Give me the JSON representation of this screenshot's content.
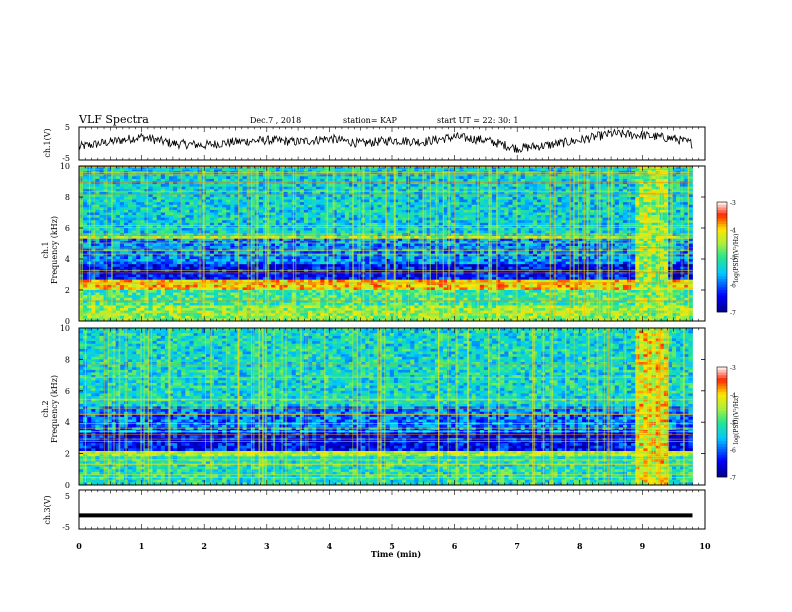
{
  "header": {
    "title": "VLF Spectra",
    "date": "Dec.7 , 2018",
    "station": "station= KAP",
    "start_ut": "start UT =  22: 30: 1"
  },
  "chart_data": [
    {
      "id": "ch1_waveform",
      "type": "line",
      "ylabel": "ch.1(V)",
      "yticks": [
        "5",
        "-5"
      ],
      "ylim": [
        -5,
        5
      ],
      "xlim": [
        0,
        10
      ],
      "x_end": 9.8,
      "series": [
        {
          "x": [
            0.0,
            0.5,
            1.0,
            1.5,
            2.0,
            2.5,
            3.0,
            3.5,
            4.0,
            4.5,
            5.0,
            5.5,
            6.0,
            6.5,
            7.0,
            7.5,
            8.0,
            8.5,
            9.0,
            9.5,
            9.8
          ],
          "values": [
            -1.0,
            0.5,
            2.0,
            0.0,
            -0.5,
            0.5,
            1.0,
            0.5,
            1.5,
            0.0,
            1.0,
            0.5,
            2.0,
            1.0,
            -1.5,
            -0.5,
            1.0,
            3.0,
            2.5,
            1.5,
            0.0
          ]
        }
      ],
      "color": "#000000"
    },
    {
      "id": "ch1_spectrogram",
      "type": "heatmap",
      "ylabel": "Frequency (kHz)",
      "channel_label": "ch.1",
      "yticks": [
        "0",
        "2",
        "4",
        "6",
        "8",
        "10"
      ],
      "ylim": [
        0,
        10
      ],
      "xlim": [
        0,
        10
      ],
      "colorbar": {
        "label": "log(PSD)(V²/Hz)",
        "ticks": [
          "-3",
          "-4",
          "-5",
          "-6",
          "-7"
        ],
        "range": [
          -7,
          -3
        ]
      },
      "bands": [
        {
          "f0": 0.0,
          "f1": 1.0,
          "level": -4.6
        },
        {
          "f0": 1.0,
          "f1": 2.0,
          "level": -5.0
        },
        {
          "f0": 2.0,
          "f1": 2.6,
          "level": -4.0
        },
        {
          "f0": 2.6,
          "f1": 3.6,
          "level": -6.4
        },
        {
          "f0": 3.6,
          "f1": 5.3,
          "level": -5.8
        },
        {
          "f0": 5.3,
          "f1": 5.5,
          "level": -4.5
        },
        {
          "f0": 5.5,
          "f1": 10.0,
          "level": -5.4
        }
      ],
      "burst": {
        "t0": 8.9,
        "t1": 9.4,
        "level": -4.6
      }
    },
    {
      "id": "ch2_spectrogram",
      "type": "heatmap",
      "ylabel": "Frequency (kHz)",
      "channel_label": "ch.2",
      "yticks": [
        "0",
        "2",
        "4",
        "6",
        "8",
        "10"
      ],
      "ylim": [
        0,
        10
      ],
      "xlim": [
        0,
        10
      ],
      "colorbar": {
        "label": "log(PSD)(V²/Hz)",
        "ticks": [
          "-3",
          "-4",
          "-5",
          "-6",
          "-7"
        ],
        "range": [
          -7,
          -3
        ]
      },
      "bands": [
        {
          "f0": 0.0,
          "f1": 1.8,
          "level": -5.2
        },
        {
          "f0": 1.8,
          "f1": 2.2,
          "level": -4.6
        },
        {
          "f0": 2.2,
          "f1": 3.4,
          "level": -6.4
        },
        {
          "f0": 3.4,
          "f1": 5.0,
          "level": -5.9
        },
        {
          "f0": 5.0,
          "f1": 10.0,
          "level": -5.3
        }
      ],
      "burst": {
        "t0": 8.9,
        "t1": 9.4,
        "level": -4.2
      }
    },
    {
      "id": "ch3_waveform",
      "type": "line",
      "ylabel": "ch.3(V)",
      "yticks": [
        "5",
        "-5"
      ],
      "ylim": [
        -5,
        5
      ],
      "xlim": [
        0,
        10
      ],
      "x_end": 9.8,
      "series": [
        {
          "x": [
            0,
            9.8
          ],
          "values": [
            -1.5,
            -1.5
          ]
        }
      ],
      "color": "#000000"
    }
  ],
  "x_axis": {
    "label": "Time (min)",
    "ticks": [
      "0",
      "1",
      "2",
      "3",
      "4",
      "5",
      "6",
      "7",
      "8",
      "9",
      "10"
    ]
  }
}
